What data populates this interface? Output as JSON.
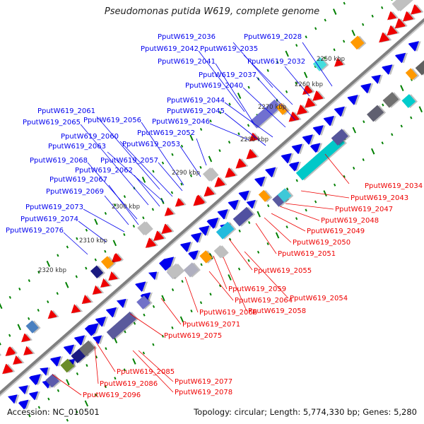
{
  "title": "Pseudomonas putida W619, complete genome",
  "footer": {
    "accession": "Accession: NC_010501",
    "summary": "Topology: circular; Length: 5,774,330 bp; Genes: 5,280"
  },
  "colors": {
    "forward_label": "#0000ee",
    "reverse_label": "#ee0000",
    "backbone": "#808080",
    "tick": "#008000"
  },
  "kbp_ticks": [
    "2250 kbp",
    "2260 kbp",
    "2270 kbp",
    "2280 kbp",
    "2290 kbp",
    "2300 kbp",
    "2310 kbp",
    "2320 kbp"
  ],
  "forward_labels": [
    "PputW619_2036",
    "PputW619_2028",
    "PputW619_2042",
    "PputW619_2035",
    "PputW619_2041",
    "PputW619_2032",
    "PputW619_2037",
    "PputW619_2040",
    "PputW619_2044",
    "PputW619_2045",
    "PputW619_2046",
    "PputW619_2061",
    "PputW619_2065",
    "PputW619_2056",
    "PputW619_2052",
    "PputW619_2060",
    "PputW619_2053",
    "PputW619_2063",
    "PputW619_2068",
    "PputW619_2057",
    "PputW619_2062",
    "PputW619_2067",
    "PputW619_2069",
    "PputW619_2073",
    "PputW619_2074",
    "PputW619_2076"
  ],
  "reverse_labels": [
    "PputW619_2034",
    "PputW619_2043",
    "PputW619_2047",
    "PputW619_2048",
    "PputW619_2049",
    "PputW619_2050",
    "PputW619_2051",
    "PputW619_2055",
    "PputW619_2059",
    "PputW619_2054",
    "PputW619_2064",
    "PputW619_2058",
    "PputW619_2066",
    "PputW619_2071",
    "PputW619_2075",
    "PputW619_2085",
    "PputW619_2077",
    "PputW619_2086",
    "PputW619_2078",
    "PputW619_2096"
  ]
}
